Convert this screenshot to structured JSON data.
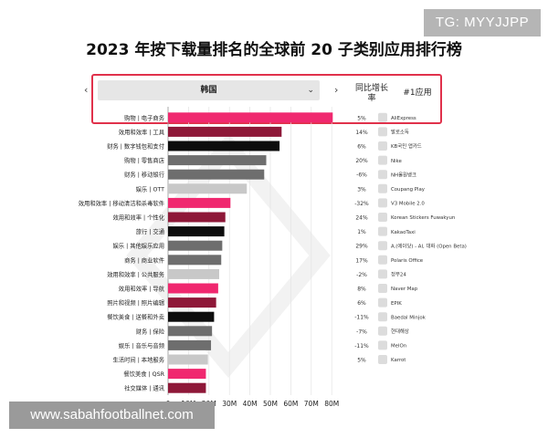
{
  "watermark_top": "TG: MYYJJPP",
  "watermark_bottom": "www.sabahfootballnet.com",
  "header": {
    "region": "韩国",
    "prev_arrow": "‹",
    "next_arrow": "›",
    "dropdown_chevron": "⌄",
    "yoy_line1": "同比增长",
    "yoy_line2": "率",
    "top_app_header": "#1应用"
  },
  "colors": {
    "pink": "#f0286f",
    "maroon": "#8e1838",
    "black": "#0d0d0d",
    "gray": "#6e6e6e",
    "lightgray": "#c8c8c8",
    "highlight_border": "#e0314b"
  },
  "chart_data": {
    "type": "bar",
    "orientation": "horizontal",
    "title": "2023 年按下载量排名的全球前 20 子类别应用排行榜",
    "xlim": [
      0,
      85
    ],
    "xticks": [
      "0",
      "10M",
      "20M",
      "30M",
      "40M",
      "50M",
      "60M",
      "70M",
      "80M"
    ],
    "tick_values": [
      0,
      10,
      20,
      30,
      40,
      50,
      60,
      70,
      80
    ],
    "grid": true,
    "rows": [
      {
        "category": "购物 | 电子商务",
        "value": 80.5,
        "color": "pink",
        "yoy": "5%",
        "app": "AliExpress",
        "icon": "aliexpress-icon"
      },
      {
        "category": "效用和效率 | 工具",
        "value": 55.5,
        "color": "maroon",
        "yoy": "14%",
        "app": "발로소독",
        "icon": "app-icon"
      },
      {
        "category": "财务 | 数字钱包和支付",
        "value": 54.5,
        "color": "black",
        "yoy": "6%",
        "app": "KB국민 앱카드",
        "icon": "kb-card-icon"
      },
      {
        "category": "购物 | 零售商店",
        "value": 48,
        "color": "gray",
        "yoy": "20%",
        "app": "Nike",
        "icon": "nike-icon"
      },
      {
        "category": "财务 | 移动银行",
        "value": 47,
        "color": "gray",
        "yoy": "-6%",
        "app": "NH올원뱅크",
        "icon": "nh-bank-icon"
      },
      {
        "category": "娱乐 | OTT",
        "value": 38.5,
        "color": "lightgray",
        "yoy": "3%",
        "app": "Coupang Play",
        "icon": "coupang-play-icon"
      },
      {
        "category": "效用和效率 | 移动清洁和杀毒软件",
        "value": 30.5,
        "color": "pink",
        "yoy": "-32%",
        "app": "V3 Mobile 2.0",
        "icon": "v3-mobile-icon"
      },
      {
        "category": "效用和效率 | 个性化",
        "value": 28,
        "color": "maroon",
        "yoy": "24%",
        "app": "Korean Stickers Fuwakyun",
        "icon": "sticker-icon"
      },
      {
        "category": "旅行 | 交通",
        "value": 27.5,
        "color": "black",
        "yoy": "1%",
        "app": "KakaoTaxi",
        "icon": "kakaotaxi-icon"
      },
      {
        "category": "娱乐 | 其他娱乐应用",
        "value": 26.5,
        "color": "gray",
        "yoy": "29%",
        "app": "A.(에이닷) - AI, 대화 (Open Beta)",
        "icon": "adot-icon"
      },
      {
        "category": "商务 | 商业软件",
        "value": 26,
        "color": "gray",
        "yoy": "17%",
        "app": "Polaris Office",
        "icon": "polaris-office-icon"
      },
      {
        "category": "效用和效率 | 公共服务",
        "value": 25,
        "color": "lightgray",
        "yoy": "-2%",
        "app": "정부24",
        "icon": "gov24-icon"
      },
      {
        "category": "效用和效率 | 导航",
        "value": 24.5,
        "color": "pink",
        "yoy": "8%",
        "app": "Naver Map",
        "icon": "naver-map-icon"
      },
      {
        "category": "照片和视频 | 照片编辑",
        "value": 23.5,
        "color": "maroon",
        "yoy": "6%",
        "app": "EPIK",
        "icon": "epik-icon"
      },
      {
        "category": "餐饮美食 | 送餐和外卖",
        "value": 22.5,
        "color": "black",
        "yoy": "-11%",
        "app": "Baedal Minjok",
        "icon": "baemin-icon"
      },
      {
        "category": "财务 | 保险",
        "value": 21.5,
        "color": "gray",
        "yoy": "-7%",
        "app": "현대해상",
        "icon": "hyundai-insurance-icon"
      },
      {
        "category": "娱乐 | 音乐与音频",
        "value": 21,
        "color": "gray",
        "yoy": "-11%",
        "app": "MelOn",
        "icon": "melon-icon"
      },
      {
        "category": "生活时间 | 本地服务",
        "value": 19.5,
        "color": "lightgray",
        "yoy": "5%",
        "app": "Karrot",
        "icon": "karrot-icon"
      },
      {
        "category": "餐饮美食 | QSR",
        "value": 18.5,
        "color": "pink",
        "yoy": "",
        "app": "",
        "icon": ""
      },
      {
        "category": "社交媒体 | 通讯",
        "value": 18.5,
        "color": "maroon",
        "yoy": "",
        "app": "",
        "icon": ""
      }
    ]
  }
}
